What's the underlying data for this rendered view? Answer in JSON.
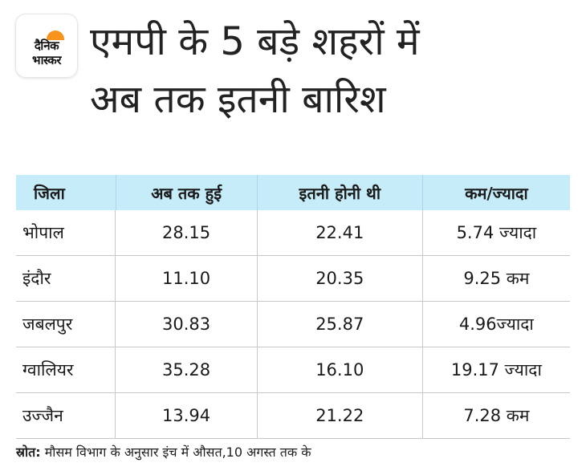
{
  "logo": {
    "line1": "दैनिक",
    "line2": "भास्कर",
    "icon": "sun-icon",
    "accent": "#f7941d"
  },
  "title": {
    "line1": "एमपी के 5 बड़े शहरों में",
    "line2": "अब तक इतनी बारिश"
  },
  "table": {
    "header_bg": "#c5ecf8",
    "headers": [
      "जिला",
      "अब तक हुई",
      "इतनी होनी थी",
      "कम/ज्यादा"
    ],
    "rows": [
      [
        "भोपाल",
        "28.15",
        "22.41",
        "5.74 ज्यादा"
      ],
      [
        "इंदौर",
        "11.10",
        "20.35",
        "9.25 कम"
      ],
      [
        "जबलपुर",
        "30.83",
        "25.87",
        "4.96ज्यादा"
      ],
      [
        "ग्वालियर",
        "35.28",
        "16.10",
        "19.17 ज्यादा"
      ],
      [
        "उज्जैन",
        "13.94",
        "21.22",
        "7.28 कम"
      ]
    ]
  },
  "source": {
    "label": "स्रोत:",
    "text": "मौसम विभाग के अनुसार इंच में औसत,10 अगस्त तक के"
  }
}
